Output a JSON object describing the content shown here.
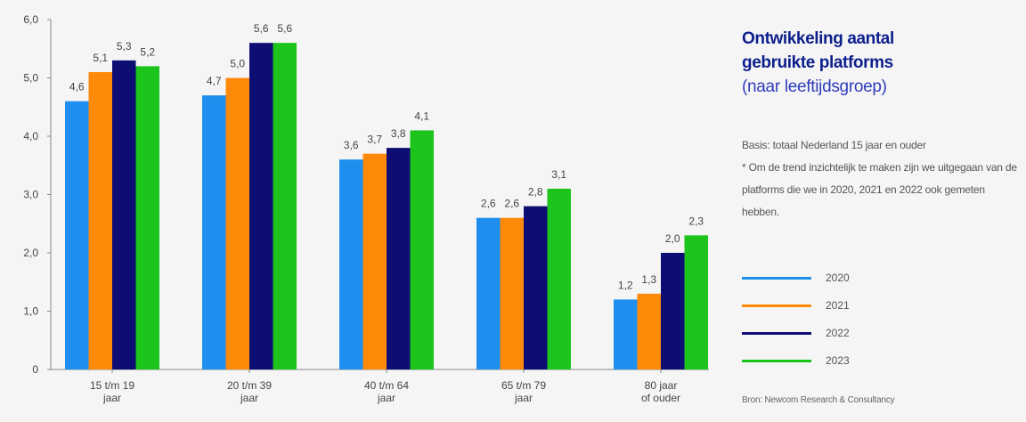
{
  "chart_data": {
    "type": "bar",
    "title": "Ontwikkeling aantal gebruikte platforms",
    "title_lines": [
      "Ontwikkeling aantal",
      "gebruikte platforms"
    ],
    "subtitle": "(naar leeftijdsgroep)",
    "categories": [
      [
        "15 t/m 19",
        "jaar"
      ],
      [
        "20 t/m 39",
        "jaar"
      ],
      [
        "40 t/m 64",
        "jaar"
      ],
      [
        "65 t/m 79",
        "jaar"
      ],
      [
        "80 jaar",
        "of ouder"
      ]
    ],
    "series": [
      {
        "name": "2020",
        "color": "#1e8fef",
        "values": [
          4.6,
          4.7,
          3.6,
          2.6,
          1.2
        ],
        "labels": [
          "4,6",
          "4,7",
          "3,6",
          "2,6",
          "1,2"
        ]
      },
      {
        "name": "2021",
        "color": "#ff8a0a",
        "values": [
          5.1,
          5.0,
          3.7,
          2.6,
          1.3
        ],
        "labels": [
          "5,1",
          "5,0",
          "3,7",
          "2,6",
          "1,3"
        ]
      },
      {
        "name": "2022",
        "color": "#0d0d73",
        "values": [
          5.3,
          5.6,
          3.8,
          2.8,
          2.0
        ],
        "labels": [
          "5,3",
          "5,6",
          "3,8",
          "2,8",
          "2,0"
        ]
      },
      {
        "name": "2023",
        "color": "#1cc41c",
        "values": [
          5.2,
          5.6,
          4.1,
          3.1,
          2.3
        ],
        "labels": [
          "5,2",
          "5,6",
          "4,1",
          "3,1",
          "2,3"
        ]
      }
    ],
    "yticks": [
      0,
      1,
      2,
      3,
      4,
      5,
      6
    ],
    "ytick_labels": [
      "0",
      "1,0",
      "2,0",
      "3,0",
      "4,0",
      "5,0",
      "6,0"
    ],
    "ylim": [
      0,
      6
    ],
    "xlabel": "",
    "ylabel": "",
    "grid": false,
    "legend": "right"
  },
  "notes": {
    "basis": "Basis: totaal Nederland 15 jaar en ouder",
    "footnote": "* Om de trend inzichtelijk te maken zijn we uitgegaan van de platforms die we in 2020, 2021 en 2022 ook gemeten hebben."
  },
  "source": "Bron: Newcom Research & Consultancy"
}
